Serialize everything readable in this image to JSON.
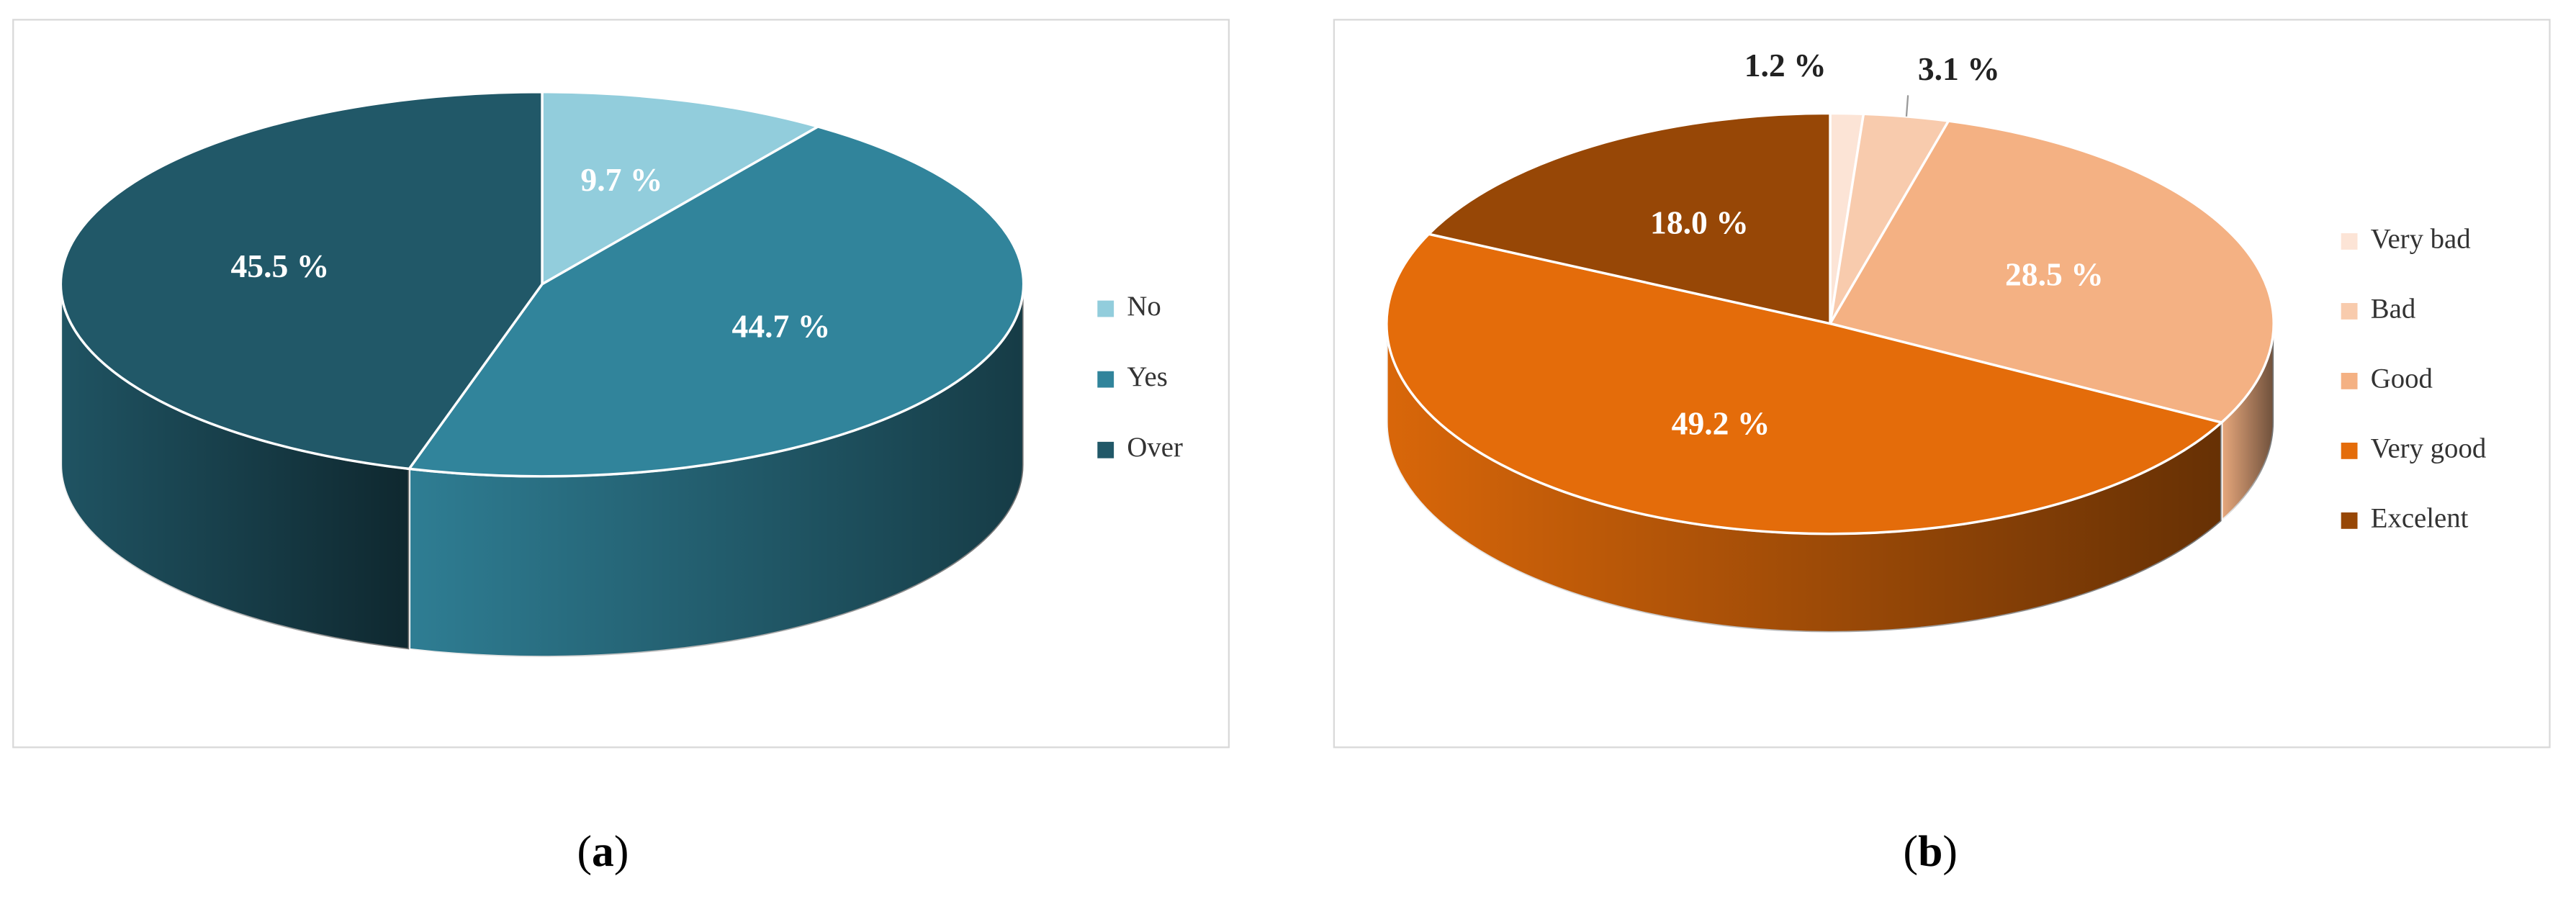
{
  "chart_data": [
    {
      "type": "pie",
      "caption": "(a)",
      "legend": "right",
      "categories": [
        "No",
        "Yes",
        "Over"
      ],
      "values": [
        9.7,
        44.7,
        45.5
      ],
      "value_labels": [
        "9.7 %",
        "44.7 %",
        "45.5 %"
      ],
      "colors": [
        "#92cddc",
        "#31849b",
        "#215868"
      ]
    },
    {
      "type": "pie",
      "caption": "(b)",
      "legend": "right",
      "categories": [
        "Very bad",
        "Bad",
        "Good",
        "Very good",
        "Excelent"
      ],
      "values": [
        1.2,
        3.1,
        28.5,
        49.2,
        18.0
      ],
      "value_labels": [
        "1.2 %",
        "3.1 %",
        "28.5 %",
        "49.2 %",
        "18.0 %"
      ],
      "colors": [
        "#fce4d6",
        "#f8cbad",
        "#f4b183",
        "#e46c0a",
        "#974706"
      ]
    }
  ]
}
